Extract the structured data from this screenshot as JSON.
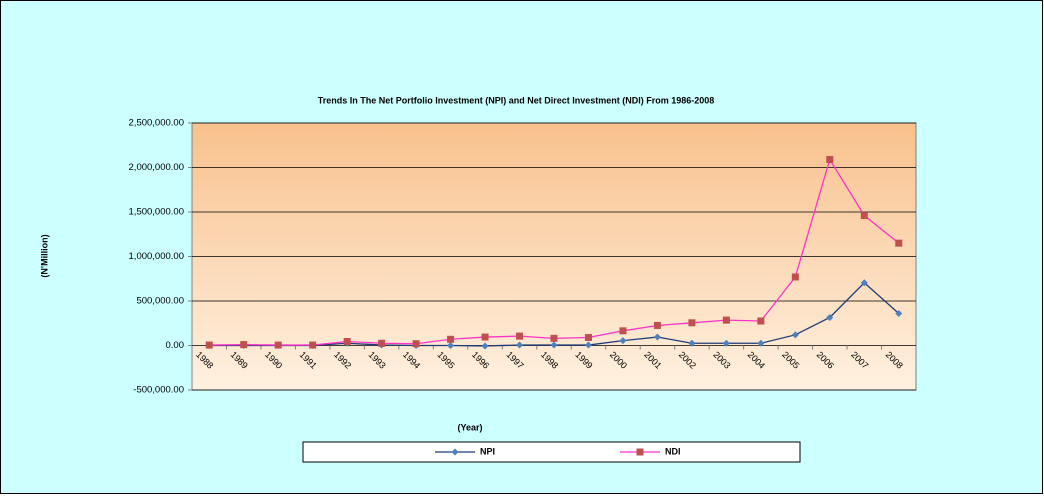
{
  "chart_data": {
    "type": "line",
    "title": "Trends In The Net Portfolio Investment (NPI) and Net Direct Investment (NDI) From 1986-2008",
    "x_label": "(Year)",
    "y_label": "(N'Million)",
    "categories": [
      "1988",
      "1989",
      "1990",
      "1991",
      "1992",
      "1993",
      "1994",
      "1995",
      "1996",
      "1997",
      "1998",
      "1999",
      "2000",
      "2001",
      "2002",
      "2003",
      "2004",
      "2005",
      "2006",
      "2007",
      "2008"
    ],
    "series": [
      {
        "name": "NPI",
        "color": "#1f3a78",
        "marker_color": "#4f81bd",
        "marker": "diamond",
        "values": [
          0,
          0,
          0,
          0,
          25000,
          5000,
          0,
          0,
          -5000,
          5000,
          5000,
          5000,
          55000,
          95000,
          25000,
          25000,
          25000,
          120000,
          315000,
          705000,
          360000
        ]
      },
      {
        "name": "NDI",
        "color": "#ff33cc",
        "marker_color": "#c0504d",
        "marker": "square",
        "values": [
          5000,
          10000,
          5000,
          5000,
          45000,
          25000,
          20000,
          70000,
          95000,
          105000,
          80000,
          90000,
          165000,
          225000,
          255000,
          285000,
          275000,
          770000,
          2090000,
          1460000,
          1150000
        ]
      }
    ],
    "ylim": [
      -500000,
      2500000
    ],
    "yticks": [
      {
        "value": -500000,
        "label": "-500,000.00"
      },
      {
        "value": 0,
        "label": "0.00"
      },
      {
        "value": 500000,
        "label": "500,000.00"
      },
      {
        "value": 1000000,
        "label": "1,000,000.00"
      },
      {
        "value": 1500000,
        "label": "1,500,000.00"
      },
      {
        "value": 2000000,
        "label": "2,000,000.00"
      },
      {
        "value": 2500000,
        "label": "2,500,000.00"
      }
    ],
    "grid": true,
    "legend": "bottom"
  }
}
